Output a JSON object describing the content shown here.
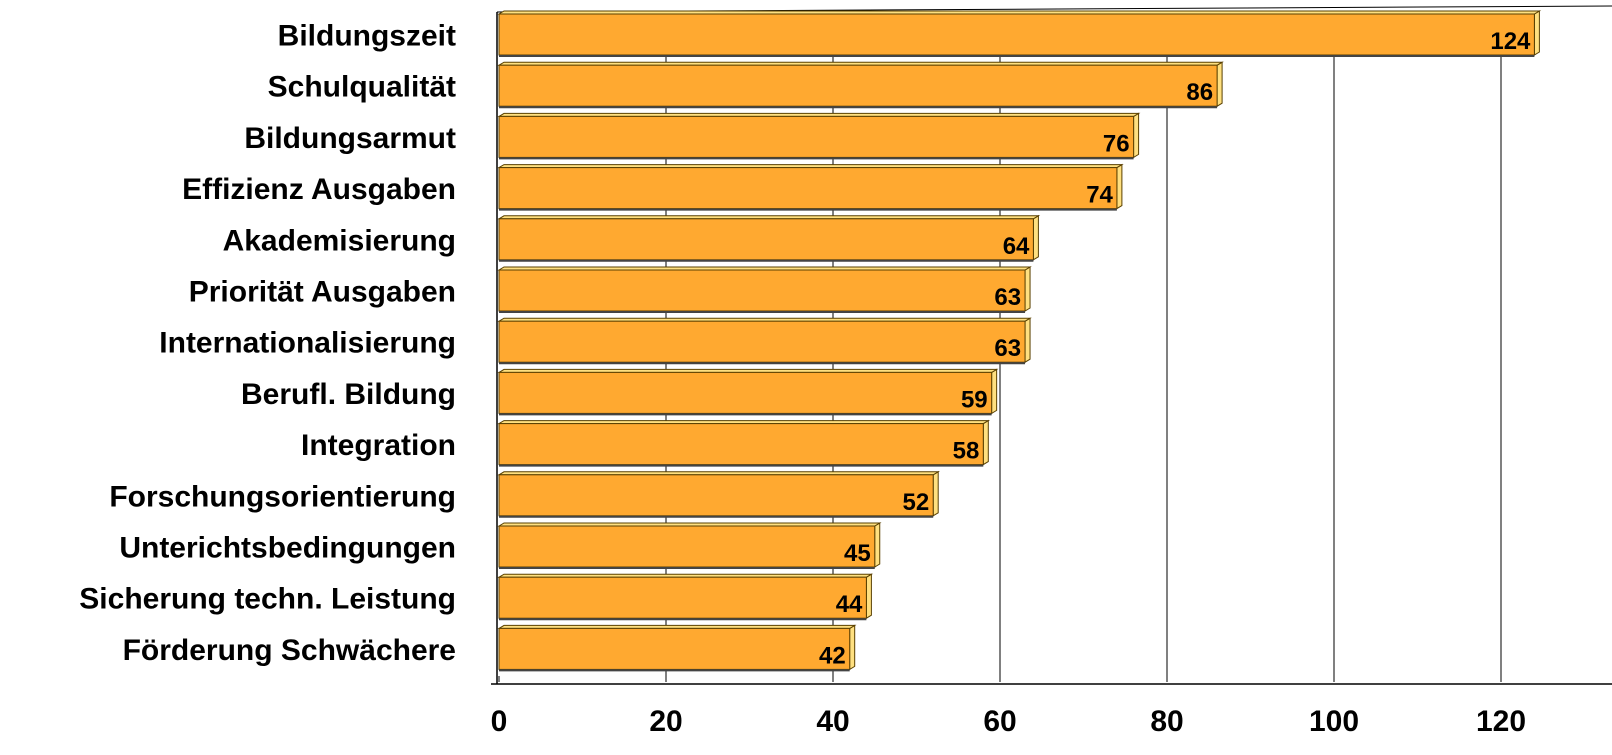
{
  "chart_data": {
    "type": "bar",
    "orientation": "horizontal",
    "categories": [
      "Bildungszeit",
      "Schulqualität",
      "Bildungsarmut",
      "Effizienz Ausgaben",
      "Akademisierung",
      "Priorität Ausgaben",
      "Internationalisierung",
      "Berufl. Bildung",
      "Integration",
      "Forschungsorientierung",
      "Unterichtsbedingungen",
      "Sicherung techn. Leistung",
      "Förderung Schwächere"
    ],
    "values": [
      124,
      86,
      76,
      74,
      64,
      63,
      63,
      59,
      58,
      52,
      45,
      44,
      42
    ],
    "title": "",
    "xlabel": "",
    "ylabel": "",
    "xlim": [
      0,
      128
    ],
    "xticks": [
      0,
      20,
      40,
      60,
      80,
      100,
      120
    ],
    "grid": "vertical",
    "legend": "none",
    "data_labels": true
  },
  "colors": {
    "bar_fill": "#FFA930",
    "bar_edge": "#5A4000",
    "bar_side": "#FFE080",
    "grid": "#000000",
    "text": "#000000"
  }
}
